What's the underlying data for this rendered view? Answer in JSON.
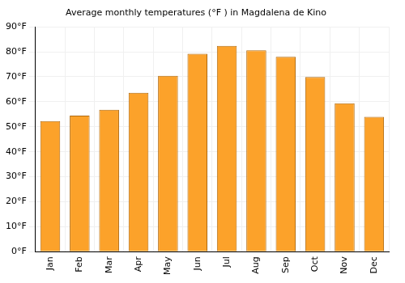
{
  "chart_data": {
    "type": "bar",
    "title": "Average monthly temperatures (°F ) in Magdalena de Kino",
    "categories": [
      "Jan",
      "Feb",
      "Mar",
      "Apr",
      "May",
      "Jun",
      "Jul",
      "Aug",
      "Sep",
      "Oct",
      "Nov",
      "Dec"
    ],
    "values": [
      52.3,
      54.5,
      56.8,
      63.6,
      70.4,
      79.2,
      82.4,
      80.6,
      78.0,
      69.9,
      59.4,
      54.0
    ],
    "color": "#fca22a",
    "ylim": [
      0,
      90
    ],
    "yticks": [
      {
        "value": 0,
        "label": "0°F"
      },
      {
        "value": 10,
        "label": "10°F"
      },
      {
        "value": 20,
        "label": "20°F"
      },
      {
        "value": 30,
        "label": "30°F"
      },
      {
        "value": 40,
        "label": "40°F"
      },
      {
        "value": 50,
        "label": "50°F"
      },
      {
        "value": 60,
        "label": "60°F"
      },
      {
        "value": 70,
        "label": "70°F"
      },
      {
        "value": 80,
        "label": "80°F"
      },
      {
        "value": 90,
        "label": "90°F"
      }
    ],
    "grid": true
  }
}
